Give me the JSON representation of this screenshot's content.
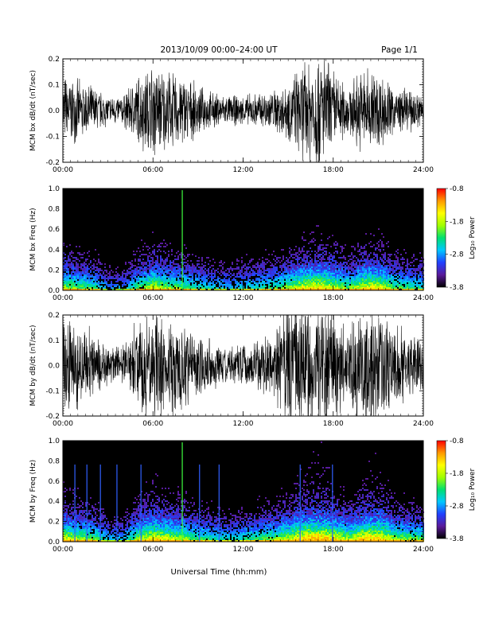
{
  "header": {
    "title": "2013/10/09  00:00–24:00 UT",
    "page_label": "Page 1/1"
  },
  "xlabel": "Universal Time (hh:mm)",
  "colors": {
    "trace": "#000000",
    "colorbar": [
      "#000000",
      "#5a1a9a",
      "#2040ff",
      "#00c8ff",
      "#00e070",
      "#a0ff00",
      "#ffff00",
      "#ff9900",
      "#ff0000"
    ]
  },
  "chart_data": [
    {
      "type": "line",
      "ylabel": "MCM bx dB/dt (nT/sec)",
      "xticks": [
        "00:00",
        "06:00",
        "12:00",
        "18:00",
        "24:00"
      ],
      "xlim_hours": [
        0,
        24
      ],
      "ylim": [
        -0.2,
        0.2
      ],
      "yticks": [
        "-0.2",
        "-0.1",
        "0.0",
        "0.1",
        "0.2"
      ],
      "envelope": {
        "hours": [
          0,
          1,
          2,
          3,
          4,
          5,
          6,
          7,
          8,
          9,
          10,
          11,
          12,
          13,
          14,
          15,
          16,
          17,
          18,
          19,
          20,
          21,
          22,
          23,
          24
        ],
        "amplitude": [
          0.12,
          0.1,
          0.08,
          0.05,
          0.05,
          0.12,
          0.16,
          0.13,
          0.12,
          0.08,
          0.06,
          0.05,
          0.05,
          0.06,
          0.07,
          0.1,
          0.16,
          0.22,
          0.14,
          0.08,
          0.15,
          0.14,
          0.08,
          0.07,
          0.06
        ]
      }
    },
    {
      "type": "heatmap",
      "ylabel": "MCM bx Freq (Hz)",
      "xticks": [
        "00:00",
        "06:00",
        "12:00",
        "18:00",
        "24:00"
      ],
      "xlim_hours": [
        0,
        24
      ],
      "ylim": [
        0.0,
        1.0
      ],
      "yticks": [
        "0.0",
        "0.2",
        "0.4",
        "0.6",
        "0.8",
        "1.0"
      ],
      "colorbar_label": "Log₁₀ Power",
      "colorbar_range": [
        -3.8,
        -0.8
      ],
      "colorbar_ticks": [
        "-0.8",
        "-1.8",
        "-2.8",
        "-3.8"
      ]
    },
    {
      "type": "line",
      "ylabel": "MCM by dB/dt (nT/sec)",
      "xticks": [
        "00:00",
        "06:00",
        "12:00",
        "18:00",
        "24:00"
      ],
      "xlim_hours": [
        0,
        24
      ],
      "ylim": [
        -0.2,
        0.2
      ],
      "yticks": [
        "-0.2",
        "-0.1",
        "0.0",
        "0.1",
        "0.2"
      ],
      "envelope": {
        "hours": [
          0,
          1,
          2,
          3,
          4,
          5,
          6,
          7,
          8,
          9,
          10,
          11,
          12,
          13,
          14,
          15,
          16,
          17,
          18,
          19,
          20,
          21,
          22,
          23,
          24
        ],
        "amplitude": [
          0.16,
          0.15,
          0.12,
          0.06,
          0.07,
          0.16,
          0.2,
          0.18,
          0.15,
          0.12,
          0.08,
          0.06,
          0.07,
          0.09,
          0.12,
          0.22,
          0.24,
          0.22,
          0.2,
          0.14,
          0.2,
          0.22,
          0.15,
          0.12,
          0.1
        ]
      }
    },
    {
      "type": "heatmap",
      "ylabel": "MCM by Freq (Hz)",
      "xticks": [
        "00:00",
        "06:00",
        "12:00",
        "18:00",
        "24:00"
      ],
      "xlim_hours": [
        0,
        24
      ],
      "ylim": [
        0.0,
        1.0
      ],
      "yticks": [
        "0.0",
        "0.2",
        "0.4",
        "0.6",
        "0.8",
        "1.0"
      ],
      "colorbar_label": "Log₁₀ Power",
      "colorbar_range": [
        -3.8,
        -0.8
      ],
      "colorbar_ticks": [
        "-0.8",
        "-1.8",
        "-2.8",
        "-3.8"
      ]
    }
  ]
}
